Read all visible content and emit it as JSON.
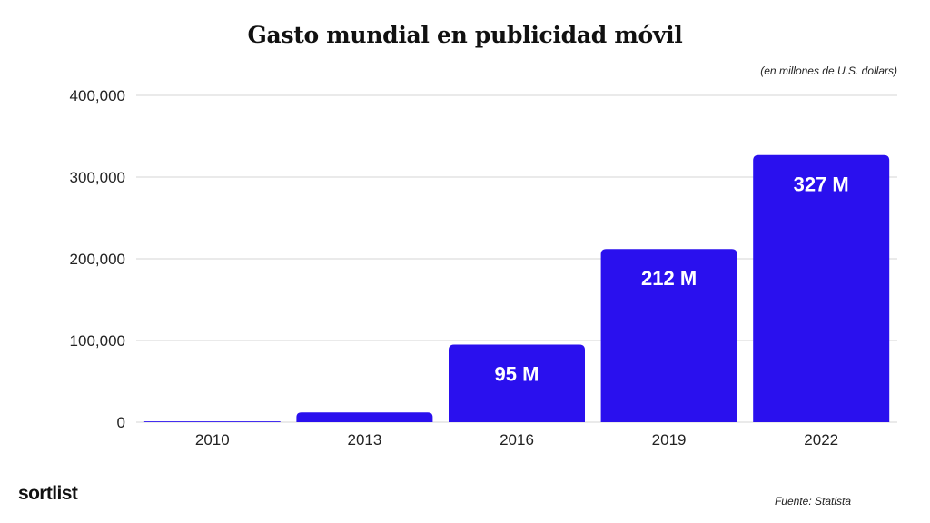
{
  "chart_data": {
    "type": "bar",
    "title": "Gasto mundial en publicidad móvil",
    "subtitle": "(en millones de U.S. dollars)",
    "categories": [
      "2010",
      "2013",
      "2016",
      "2019",
      "2022"
    ],
    "values": [
      1000,
      12000,
      95000,
      212000,
      327000
    ],
    "data_labels": [
      "",
      "",
      "95 M",
      "212 M",
      "327 M"
    ],
    "ylim": [
      0,
      400000
    ],
    "yticks": [
      0,
      100000,
      200000,
      300000,
      400000
    ],
    "ytick_labels": [
      "0",
      "100,000",
      "200,000",
      "300,000",
      "400,000"
    ],
    "xlabel": "",
    "ylabel": "",
    "grid": true,
    "bar_color": "#2a10ee"
  },
  "footer": {
    "brand": "sortlist",
    "source": "Fuente: Statista"
  }
}
